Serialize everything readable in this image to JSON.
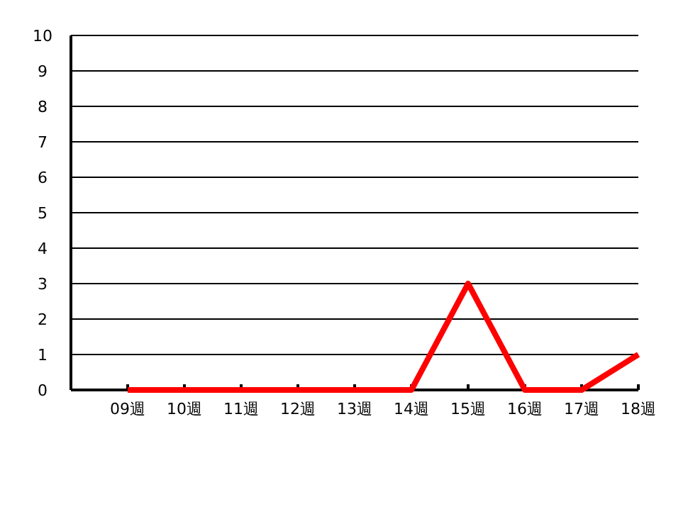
{
  "chart_data": {
    "type": "line",
    "categories": [
      "09週",
      "10週",
      "11週",
      "12週",
      "13週",
      "14週",
      "15週",
      "16週",
      "17週",
      "18週"
    ],
    "series": [
      {
        "color": "#ff0000",
        "values": [
          0,
          0,
          0,
          0,
          0,
          0,
          3,
          0,
          0,
          1
        ]
      }
    ],
    "ylim": [
      0,
      10
    ],
    "yticks": [
      0,
      1,
      2,
      3,
      4,
      5,
      6,
      7,
      8,
      9,
      10
    ],
    "grid": "y",
    "marker": "none",
    "line_style": "solid"
  }
}
